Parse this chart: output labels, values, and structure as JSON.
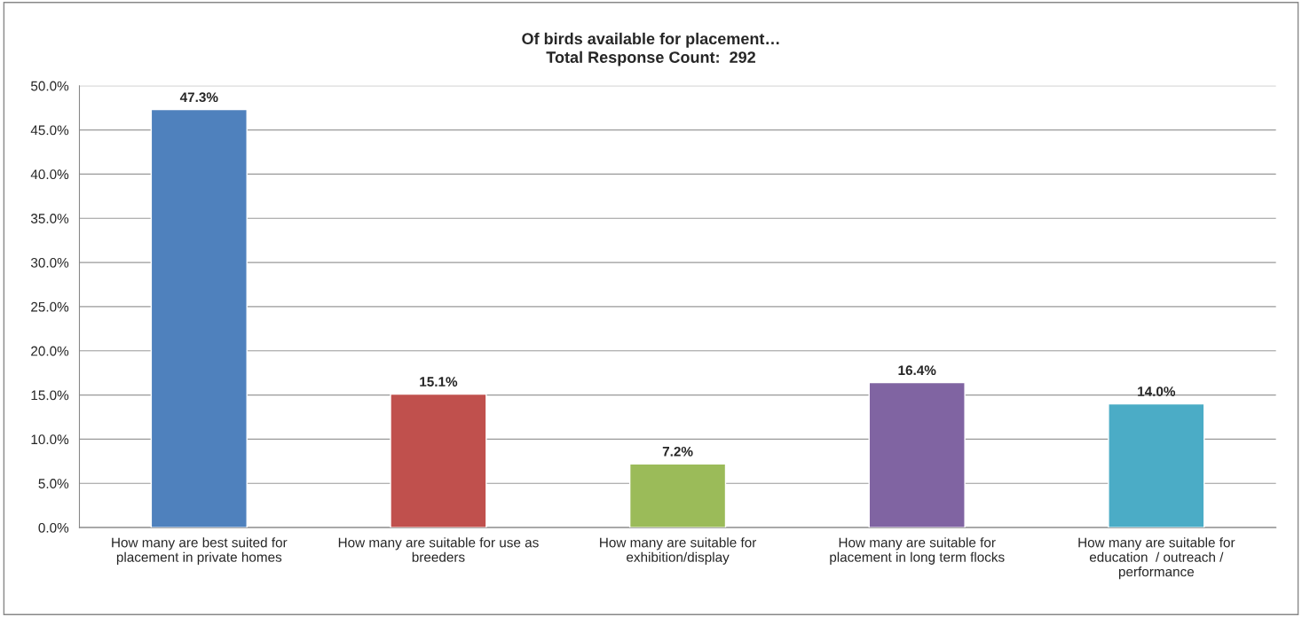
{
  "chart_data": {
    "type": "bar",
    "title": "Of birds available for placement…",
    "subtitle": "Total Response Count:  292",
    "categories": [
      "How many are best suited for\nplacement in private homes",
      "How many are suitable for use as\nbreeders",
      "How many are suitable for\nexhibition/display",
      "How many are suitable for\nplacement in long term flocks",
      "How many are suitable for\neducation  / outreach /\nperformance"
    ],
    "values": [
      47.3,
      15.1,
      7.2,
      16.4,
      14.0
    ],
    "value_labels": [
      "47.3%",
      "15.1%",
      "7.2%",
      "16.4%",
      "14.0%"
    ],
    "colors": [
      "#4f81bd",
      "#c0504d",
      "#9bbb59",
      "#8064a2",
      "#4bacc6"
    ],
    "ylim": [
      0,
      50
    ],
    "yticks": [
      {
        "value": 0,
        "label": "0.0%"
      },
      {
        "value": 5,
        "label": "5.0%"
      },
      {
        "value": 10,
        "label": "10.0%"
      },
      {
        "value": 15,
        "label": "15.0%"
      },
      {
        "value": 20,
        "label": "20.0%"
      },
      {
        "value": 25,
        "label": "25.0%"
      },
      {
        "value": 30,
        "label": "30.0%"
      },
      {
        "value": 35,
        "label": "35.0%"
      },
      {
        "value": 40,
        "label": "40.0%"
      },
      {
        "value": 45,
        "label": "45.0%"
      },
      {
        "value": 50,
        "label": "50.0%"
      }
    ],
    "grid": "y"
  }
}
